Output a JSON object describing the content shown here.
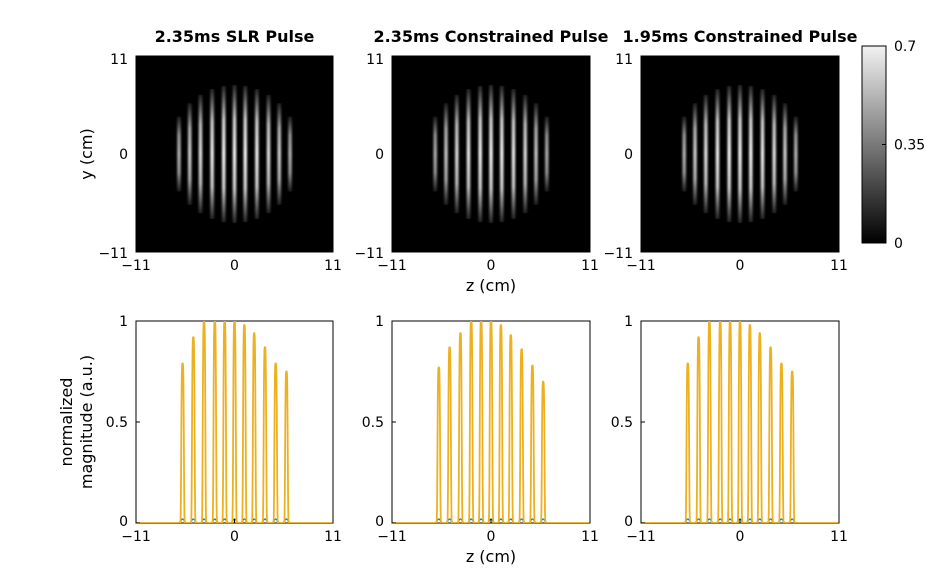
{
  "chart_data": [
    {
      "type": "heatmap",
      "title": "2.35ms SLR Pulse",
      "xlabel": "",
      "ylabel": "y (cm)",
      "xlim": [
        -11,
        11
      ],
      "ylim": [
        -11,
        11
      ],
      "x_ticks": [
        "−11",
        "0",
        "11"
      ],
      "y_ticks": [
        "11",
        "0",
        "−11"
      ],
      "stripe_centers_cm": [
        -6.2,
        -5.0,
        -3.8,
        -2.5,
        -1.2,
        0,
        1.2,
        2.5,
        3.8,
        5.0,
        6.2
      ],
      "stripe_peak": [
        0.45,
        0.55,
        0.62,
        0.68,
        0.7,
        0.7,
        0.7,
        0.68,
        0.62,
        0.55,
        0.45
      ],
      "support_radius_cm": 7.4,
      "color_range": [
        0,
        0.7
      ]
    },
    {
      "type": "heatmap",
      "title": "2.35ms Constrained Pulse",
      "xlabel": "z (cm)",
      "ylabel": "",
      "xlim": [
        -11,
        11
      ],
      "ylim": [
        -11,
        11
      ],
      "x_ticks": [
        "−11",
        "0",
        "11"
      ],
      "y_ticks": [
        "11",
        "0",
        "−11"
      ],
      "stripe_centers_cm": [
        -6.2,
        -5.0,
        -3.8,
        -2.5,
        -1.2,
        0,
        1.2,
        2.5,
        3.8,
        5.0,
        6.2
      ],
      "stripe_peak": [
        0.42,
        0.52,
        0.6,
        0.66,
        0.69,
        0.7,
        0.69,
        0.66,
        0.6,
        0.52,
        0.42
      ],
      "support_radius_cm": 7.4,
      "color_range": [
        0,
        0.7
      ]
    },
    {
      "type": "heatmap",
      "title": "1.95ms Constrained Pulse",
      "xlabel": "",
      "ylabel": "",
      "xlim": [
        -11,
        11
      ],
      "ylim": [
        -11,
        11
      ],
      "x_ticks": [
        "−11",
        "0",
        "11"
      ],
      "y_ticks": [
        "11",
        "0",
        "−11"
      ],
      "stripe_centers_cm": [
        -6.2,
        -5.0,
        -3.8,
        -2.5,
        -1.2,
        0,
        1.2,
        2.5,
        3.8,
        5.0,
        6.2
      ],
      "stripe_peak": [
        0.45,
        0.55,
        0.62,
        0.68,
        0.7,
        0.7,
        0.7,
        0.68,
        0.62,
        0.55,
        0.45
      ],
      "support_radius_cm": 7.4,
      "color_range": [
        0,
        0.7
      ]
    },
    {
      "type": "line",
      "title": "",
      "xlabel": "",
      "ylabel": "normalized magnitude (a.u.)",
      "ylabel_lines": [
        "normalized",
        "magnitude (a.u.)"
      ],
      "xlim": [
        -11,
        11
      ],
      "ylim": [
        0,
        1
      ],
      "x_ticks": [
        "−11",
        "0",
        "11"
      ],
      "y_ticks": [
        "1",
        "0.5",
        "0"
      ],
      "peak_x": [
        -5.8,
        -4.6,
        -3.4,
        -2.2,
        -1.1,
        0,
        1.1,
        2.2,
        3.4,
        4.6,
        5.8
      ],
      "peak_values": [
        0.79,
        0.92,
        1.0,
        1.0,
        1.0,
        1.0,
        0.98,
        0.94,
        0.87,
        0.79,
        0.75
      ],
      "color": "#EDB120"
    },
    {
      "type": "line",
      "title": "",
      "xlabel": "z (cm)",
      "ylabel": "",
      "xlim": [
        -11,
        11
      ],
      "ylim": [
        0,
        1
      ],
      "x_ticks": [
        "−11",
        "0",
        "11"
      ],
      "y_ticks": [
        "1",
        "0.5",
        "0"
      ],
      "peak_x": [
        -5.8,
        -4.6,
        -3.4,
        -2.2,
        -1.1,
        0,
        1.1,
        2.2,
        3.4,
        4.6,
        5.8
      ],
      "peak_values": [
        0.77,
        0.87,
        0.94,
        1.0,
        1.0,
        1.0,
        0.98,
        0.93,
        0.86,
        0.78,
        0.7
      ],
      "color": "#EDB120"
    },
    {
      "type": "line",
      "title": "",
      "xlabel": "",
      "ylabel": "",
      "xlim": [
        -11,
        11
      ],
      "ylim": [
        0,
        1
      ],
      "x_ticks": [
        "−11",
        "0",
        "11"
      ],
      "y_ticks": [
        "1",
        "0.5",
        "0"
      ],
      "peak_x": [
        -5.8,
        -4.6,
        -3.4,
        -2.2,
        -1.1,
        0,
        1.1,
        2.2,
        3.4,
        4.6,
        5.8
      ],
      "peak_values": [
        0.79,
        0.92,
        1.0,
        1.0,
        1.0,
        1.0,
        0.98,
        0.94,
        0.87,
        0.79,
        0.75
      ],
      "color": "#EDB120"
    }
  ],
  "colorbar": {
    "range": [
      0,
      0.7
    ],
    "tick_labels": [
      "0.7",
      "0.35",
      "0"
    ]
  },
  "bottom_line_color": "#0072BD"
}
